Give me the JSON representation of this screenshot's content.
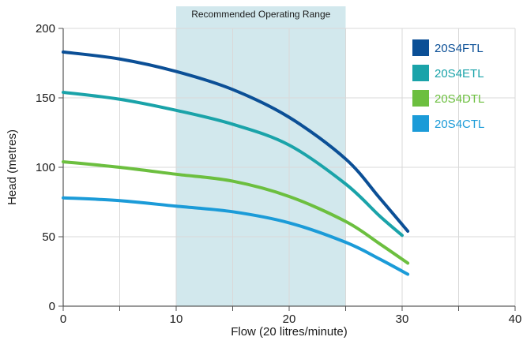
{
  "chart_data": {
    "type": "line",
    "xlabel": "Flow (20 litres/minute)",
    "ylabel": "Head (metres)",
    "xlim": [
      0,
      40
    ],
    "ylim": [
      0,
      200
    ],
    "x_ticks": [
      0,
      10,
      20,
      30,
      40
    ],
    "y_ticks": [
      0,
      50,
      100,
      150,
      200
    ],
    "x_tick_labels": [
      "0",
      "10",
      "20",
      "30",
      "40"
    ],
    "y_tick_labels": [
      "0",
      "50",
      "100",
      "150",
      "200"
    ],
    "grid": true,
    "legend_position": "top-right",
    "shaded_region": {
      "label": "Recommended Operating Range",
      "x_start": 10,
      "x_end": 25,
      "color": "#d2e8ed"
    },
    "series": [
      {
        "name": "20S4FTL",
        "color": "#0b4f96",
        "points": [
          [
            0,
            183
          ],
          [
            5,
            178
          ],
          [
            10,
            169
          ],
          [
            15,
            156
          ],
          [
            20,
            136
          ],
          [
            25,
            106
          ],
          [
            28,
            78
          ],
          [
            30.5,
            54
          ]
        ]
      },
      {
        "name": "20S4ETL",
        "color": "#1aa3a9",
        "points": [
          [
            0,
            154
          ],
          [
            5,
            149
          ],
          [
            10,
            141
          ],
          [
            15,
            131
          ],
          [
            20,
            116
          ],
          [
            25,
            88
          ],
          [
            28,
            65
          ],
          [
            30,
            51
          ]
        ]
      },
      {
        "name": "20S4DTL",
        "color": "#6cbf3f",
        "points": [
          [
            0,
            104
          ],
          [
            5,
            100
          ],
          [
            10,
            95
          ],
          [
            15,
            90
          ],
          [
            20,
            79
          ],
          [
            25,
            61
          ],
          [
            28,
            45
          ],
          [
            30.5,
            31
          ]
        ]
      },
      {
        "name": "20S4CTL",
        "color": "#1b9bd8",
        "points": [
          [
            0,
            78
          ],
          [
            5,
            76
          ],
          [
            10,
            72
          ],
          [
            15,
            68
          ],
          [
            20,
            60
          ],
          [
            25,
            46
          ],
          [
            28,
            34
          ],
          [
            30.5,
            23
          ]
        ]
      }
    ]
  }
}
